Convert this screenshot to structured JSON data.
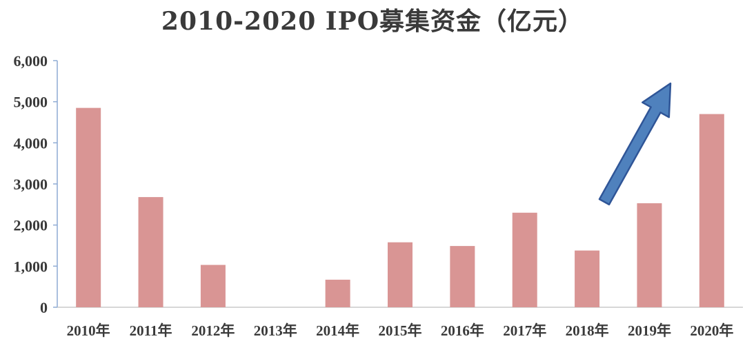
{
  "chart_data": {
    "type": "bar",
    "title": "2010-2020 IPO募集资金（亿元）",
    "categories": [
      "2010年",
      "2011年",
      "2012年",
      "2013年",
      "2014年",
      "2015年",
      "2016年",
      "2017年",
      "2018年",
      "2019年",
      "2020年"
    ],
    "values": [
      4850,
      2680,
      1030,
      0,
      670,
      1580,
      1490,
      2300,
      1380,
      2530,
      4700
    ],
    "ylim": [
      0,
      6000
    ],
    "yticks": [
      0,
      1000,
      2000,
      3000,
      4000,
      5000,
      6000
    ],
    "ytick_labels": [
      "0",
      "1,000",
      "2,000",
      "3,000",
      "4,000",
      "5,000",
      "6,000"
    ],
    "xlabel": "",
    "ylabel": "",
    "grid": false,
    "legend": "none",
    "bar_color": "#d99594",
    "axis_color": "#8eaad4",
    "annotation": {
      "type": "upward-arrow",
      "color": "#4f81bd"
    }
  }
}
